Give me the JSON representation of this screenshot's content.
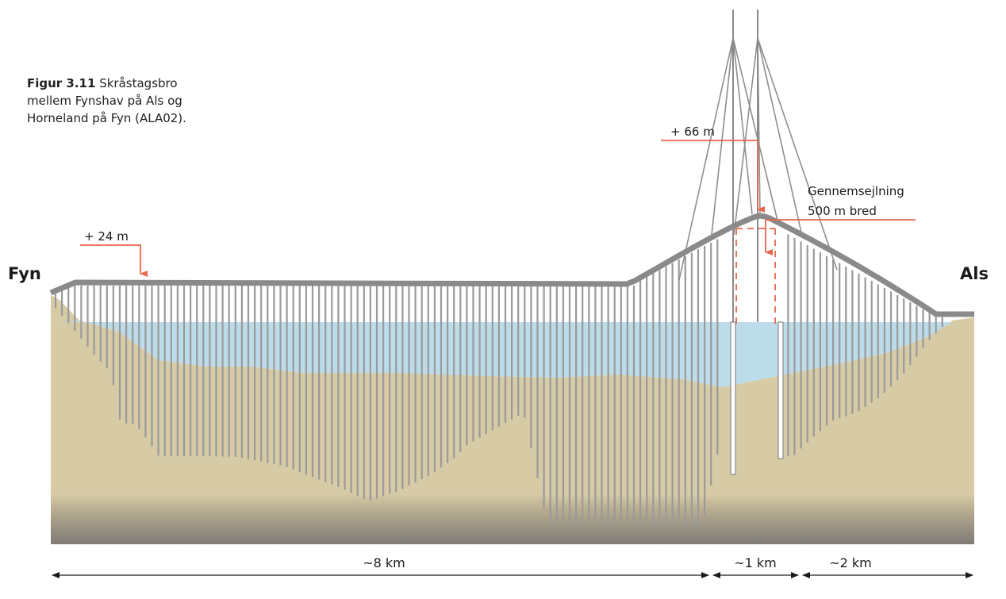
{
  "caption": {
    "figure_label": "Figur 3.11",
    "text_line1": "Skråstagsbro",
    "text_line2": "mellem Fynshav  på Als og",
    "text_line3": "Horneland på Fyn (ALA02)."
  },
  "places": {
    "left": "Fyn",
    "right": "Als"
  },
  "annotations": {
    "deck_height": "+ 24 m",
    "pylon_height": "+ 66 m",
    "navigation_line1": "Gennemsejlning",
    "navigation_line2": "500 m bred"
  },
  "dimensions": {
    "main_span": "~8 km",
    "cable_span": "~1 km",
    "east_span": "~2 km"
  },
  "colors": {
    "ground": "#d7cba6",
    "ground_deep": "#7f7b76",
    "water": "#bcdcea",
    "deck": "#8a8a8a",
    "pier": "#9a9a9a",
    "annotation": "#e8664b"
  }
}
